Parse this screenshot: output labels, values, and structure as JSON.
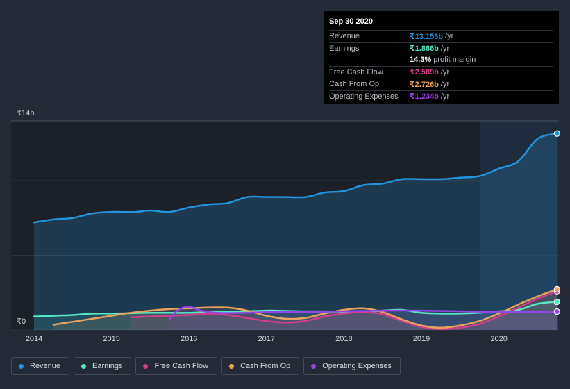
{
  "chart_data": {
    "type": "area",
    "y_axis": {
      "top_label": "₹14b",
      "bottom_label": "₹0",
      "ylim": [
        0,
        14
      ]
    },
    "x_ticks": [
      "2014",
      "2015",
      "2016",
      "2017",
      "2018",
      "2019",
      "2020"
    ],
    "series": [
      {
        "name": "Revenue",
        "color": "#2394df",
        "points": [
          [
            2014.0,
            7.2
          ],
          [
            2014.25,
            7.4
          ],
          [
            2014.5,
            7.5
          ],
          [
            2014.75,
            7.8
          ],
          [
            2015.0,
            7.9
          ],
          [
            2015.3,
            7.9
          ],
          [
            2015.5,
            8.0
          ],
          [
            2015.75,
            7.9
          ],
          [
            2016.0,
            8.2
          ],
          [
            2016.25,
            8.4
          ],
          [
            2016.5,
            8.5
          ],
          [
            2016.75,
            8.9
          ],
          [
            2017.0,
            8.9
          ],
          [
            2017.25,
            8.9
          ],
          [
            2017.5,
            8.9
          ],
          [
            2017.75,
            9.2
          ],
          [
            2018.0,
            9.3
          ],
          [
            2018.25,
            9.7
          ],
          [
            2018.5,
            9.8
          ],
          [
            2018.75,
            10.1
          ],
          [
            2019.0,
            10.1
          ],
          [
            2019.25,
            10.1
          ],
          [
            2019.5,
            10.2
          ],
          [
            2019.75,
            10.3
          ],
          [
            2020.0,
            10.8
          ],
          [
            2020.25,
            11.3
          ],
          [
            2020.5,
            12.8
          ],
          [
            2020.75,
            13.153
          ]
        ]
      },
      {
        "name": "Earnings",
        "color": "#58e6c3",
        "points": [
          [
            2014.0,
            0.9
          ],
          [
            2014.25,
            0.95
          ],
          [
            2014.5,
            1.0
          ],
          [
            2014.75,
            1.1
          ],
          [
            2015.0,
            1.1
          ],
          [
            2015.25,
            1.12
          ],
          [
            2015.5,
            1.15
          ],
          [
            2015.75,
            1.15
          ],
          [
            2016.0,
            1.15
          ],
          [
            2016.25,
            1.2
          ],
          [
            2016.5,
            1.2
          ],
          [
            2016.75,
            1.25
          ],
          [
            2017.0,
            1.3
          ],
          [
            2017.25,
            1.28
          ],
          [
            2017.5,
            1.25
          ],
          [
            2017.75,
            1.25
          ],
          [
            2018.0,
            1.22
          ],
          [
            2018.25,
            1.2
          ],
          [
            2018.5,
            1.3
          ],
          [
            2018.75,
            1.35
          ],
          [
            2019.0,
            1.15
          ],
          [
            2019.25,
            1.1
          ],
          [
            2019.5,
            1.1
          ],
          [
            2019.75,
            1.15
          ],
          [
            2020.0,
            1.25
          ],
          [
            2020.25,
            1.35
          ],
          [
            2020.5,
            1.75
          ],
          [
            2020.75,
            1.886
          ]
        ]
      },
      {
        "name": "Free Cash Flow",
        "color": "#d13f8a",
        "points": [
          [
            2015.25,
            0.85
          ],
          [
            2015.75,
            0.95
          ],
          [
            2016.0,
            1.0
          ],
          [
            2016.25,
            1.1
          ],
          [
            2016.5,
            1.0
          ],
          [
            2016.75,
            0.8
          ],
          [
            2017.0,
            0.6
          ],
          [
            2017.25,
            0.5
          ],
          [
            2017.5,
            0.6
          ],
          [
            2017.75,
            0.9
          ],
          [
            2018.0,
            1.1
          ],
          [
            2018.25,
            1.2
          ],
          [
            2018.5,
            1.05
          ],
          [
            2018.75,
            0.6
          ],
          [
            2019.0,
            0.2
          ],
          [
            2019.25,
            0.05
          ],
          [
            2019.5,
            0.15
          ],
          [
            2019.75,
            0.4
          ],
          [
            2020.0,
            0.9
          ],
          [
            2020.25,
            1.5
          ],
          [
            2020.5,
            2.1
          ],
          [
            2020.75,
            2.589
          ]
        ]
      },
      {
        "name": "Cash From Op",
        "color": "#e8a25c",
        "points": [
          [
            2014.25,
            0.35
          ],
          [
            2014.5,
            0.55
          ],
          [
            2014.75,
            0.75
          ],
          [
            2015.0,
            0.95
          ],
          [
            2015.25,
            1.15
          ],
          [
            2015.5,
            1.3
          ],
          [
            2015.75,
            1.4
          ],
          [
            2016.0,
            1.45
          ],
          [
            2016.25,
            1.5
          ],
          [
            2016.5,
            1.5
          ],
          [
            2016.75,
            1.3
          ],
          [
            2017.0,
            0.95
          ],
          [
            2017.25,
            0.75
          ],
          [
            2017.5,
            0.8
          ],
          [
            2017.75,
            1.1
          ],
          [
            2018.0,
            1.35
          ],
          [
            2018.25,
            1.45
          ],
          [
            2018.5,
            1.2
          ],
          [
            2018.75,
            0.7
          ],
          [
            2019.0,
            0.3
          ],
          [
            2019.25,
            0.15
          ],
          [
            2019.5,
            0.3
          ],
          [
            2019.75,
            0.6
          ],
          [
            2020.0,
            1.1
          ],
          [
            2020.25,
            1.7
          ],
          [
            2020.5,
            2.25
          ],
          [
            2020.75,
            2.726
          ]
        ]
      },
      {
        "name": "Operating Expenses",
        "color": "#9245e8",
        "points": [
          [
            2015.75,
            0.7
          ],
          [
            2015.85,
            1.3
          ],
          [
            2016.0,
            1.55
          ],
          [
            2016.15,
            1.3
          ],
          [
            2016.35,
            1.15
          ],
          [
            2016.75,
            1.15
          ],
          [
            2017.0,
            1.2
          ],
          [
            2017.5,
            1.2
          ],
          [
            2018.0,
            1.25
          ],
          [
            2018.5,
            1.3
          ],
          [
            2019.0,
            1.3
          ],
          [
            2019.5,
            1.25
          ],
          [
            2020.0,
            1.2
          ],
          [
            2020.5,
            1.2
          ],
          [
            2020.75,
            1.234
          ]
        ]
      }
    ],
    "tooltip": {
      "date": "Sep 30 2020",
      "rows": [
        {
          "label": "Revenue",
          "value": "₹13.153b",
          "unit": "/yr",
          "color": "#2394df"
        },
        {
          "label": "Earnings",
          "value": "₹1.886b",
          "unit": "/yr",
          "color": "#58e6c3"
        },
        {
          "label": "",
          "value": "14.3%",
          "unit": "profit margin",
          "color": "#ffffff"
        },
        {
          "label": "Free Cash Flow",
          "value": "₹2.589b",
          "unit": "/yr",
          "color": "#d13f8a"
        },
        {
          "label": "Cash From Op",
          "value": "₹2.726b",
          "unit": "/yr",
          "color": "#e8a25c"
        },
        {
          "label": "Operating Expenses",
          "value": "₹1.234b",
          "unit": "/yr",
          "color": "#9245e8"
        }
      ]
    },
    "legend": [
      {
        "label": "Revenue",
        "color": "#2394df"
      },
      {
        "label": "Earnings",
        "color": "#58e6c3"
      },
      {
        "label": "Free Cash Flow",
        "color": "#d13f8a"
      },
      {
        "label": "Cash From Op",
        "color": "#e8a25c"
      },
      {
        "label": "Operating Expenses",
        "color": "#9245e8"
      }
    ]
  }
}
